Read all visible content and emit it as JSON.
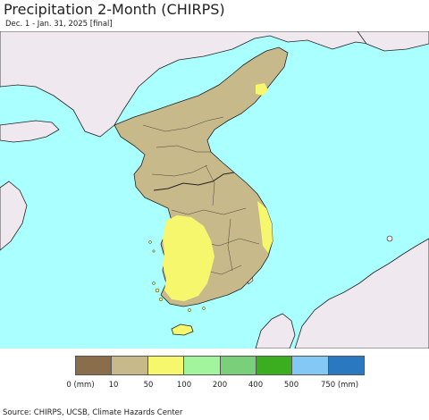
{
  "title": "Precipitation 2-Month (CHIRPS)",
  "subtitle": "Dec. 1 - Jan. 31, 2025 [final]",
  "legend": {
    "swatches": [
      {
        "color": "#8a6d4a"
      },
      {
        "color": "#c8b98a"
      },
      {
        "color": "#f7f76e"
      },
      {
        "color": "#a2f59c"
      },
      {
        "color": "#7ad07a"
      },
      {
        "color": "#3aae1e"
      },
      {
        "color": "#84c8f5"
      },
      {
        "color": "#2a78c0"
      }
    ],
    "labels": [
      "0 (mm)",
      "10",
      "50",
      "100",
      "200",
      "400",
      "500",
      "750 (mm)"
    ]
  },
  "colors": {
    "ocean": "#aaffff",
    "no_data_land": "#efe9ef",
    "dry_land": "#c8b98a",
    "wet_land": "#f7f76e",
    "border": "#222222"
  },
  "source": "Source: CHIRPS, UCSB, Climate Hazards Center"
}
